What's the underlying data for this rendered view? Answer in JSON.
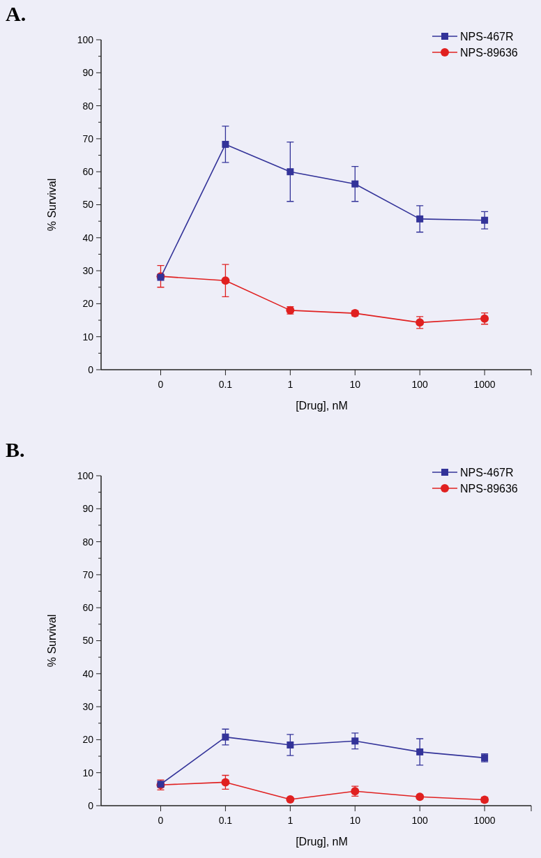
{
  "chart_data": [
    {
      "type": "line",
      "title": "A.",
      "xlabel": "[Drug], nM",
      "ylabel": "% Survival",
      "categories": [
        "0",
        "0.1",
        "1",
        "10",
        "100",
        "1000"
      ],
      "ylim": [
        0,
        100
      ],
      "yticks": [
        0,
        {
          "value": 5,
          "label": null
        },
        10,
        {
          "value": 15,
          "label": null
        },
        20,
        {
          "value": 25,
          "label": null
        },
        30,
        {
          "value": 35,
          "label": null
        },
        40,
        {
          "value": 45,
          "label": null
        },
        50,
        {
          "value": 55,
          "label": null
        },
        60,
        {
          "value": 65,
          "label": null
        },
        70,
        {
          "value": 75,
          "label": null
        },
        80,
        {
          "value": 85,
          "label": null
        },
        90,
        {
          "value": 95,
          "label": null
        },
        100
      ],
      "grid": false,
      "legend": "top right",
      "line_style": "solid",
      "series": [
        {
          "name": "NPS-467R",
          "color": "#333399",
          "marker": "square",
          "values": [
            28,
            68.3,
            60,
            56.3,
            45.7,
            45.3
          ],
          "errors": [
            null,
            5.5,
            9,
            5.3,
            4,
            2.6
          ]
        },
        {
          "name": "NPS-89636",
          "color": "#e02020",
          "marker": "circle",
          "values": [
            28.3,
            27,
            18,
            17.1,
            14.3,
            15.5
          ],
          "errors": [
            3.3,
            4.9,
            1.1,
            0.8,
            1.8,
            1.7
          ]
        }
      ]
    },
    {
      "type": "line",
      "title": "B.",
      "xlabel": "[Drug], nM",
      "ylabel": "% Survival",
      "categories": [
        "0",
        "0.1",
        "1",
        "10",
        "100",
        "1000"
      ],
      "ylim": [
        0,
        100
      ],
      "yticks": [
        0,
        {
          "value": 5,
          "label": null
        },
        10,
        {
          "value": 15,
          "label": null
        },
        20,
        {
          "value": 25,
          "label": null
        },
        30,
        {
          "value": 35,
          "label": null
        },
        40,
        {
          "value": 45,
          "label": null
        },
        50,
        {
          "value": 55,
          "label": null
        },
        60,
        {
          "value": 65,
          "label": null
        },
        70,
        {
          "value": 75,
          "label": null
        },
        80,
        {
          "value": 85,
          "label": null
        },
        90,
        {
          "value": 95,
          "label": null
        },
        100
      ],
      "grid": false,
      "legend": "top right",
      "line_style": "solid",
      "series": [
        {
          "name": "NPS-467R",
          "color": "#333399",
          "marker": "square",
          "values": [
            6.5,
            20.8,
            18.4,
            19.6,
            16.3,
            14.5
          ],
          "errors": [
            null,
            2.4,
            3.2,
            2.4,
            4,
            1.2
          ]
        },
        {
          "name": "NPS-89636",
          "color": "#e02020",
          "marker": "circle",
          "values": [
            6.3,
            7.1,
            1.9,
            4.4,
            2.7,
            1.8
          ],
          "errors": [
            1.5,
            2.1,
            0.5,
            1.5,
            0.5,
            0.7
          ]
        }
      ]
    }
  ]
}
